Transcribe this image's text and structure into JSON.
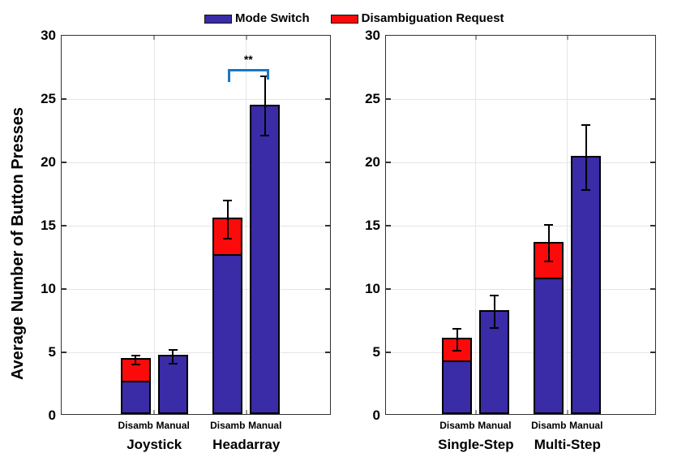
{
  "figure": {
    "background": "#FFFFFF"
  },
  "legend": {
    "items": [
      {
        "label": "Mode Switch",
        "color": "#3A2BA6"
      },
      {
        "label": "Disambiguation Request",
        "color": "#FA0A0A"
      }
    ]
  },
  "colors": {
    "mode_switch": "#3A2BA6",
    "disambiguation_request": "#FA0A0A",
    "bar_edge": "#000000",
    "axis": "#333333",
    "grid": "#E5E5E5",
    "error": "#000000",
    "significance": "#1777C5"
  },
  "chart_data": [
    {
      "type": "bar",
      "stacked": true,
      "title": "",
      "xlabel": "",
      "ylabel": "Average Number of Button Presses",
      "ylim": [
        0,
        30
      ],
      "yticks": [
        0,
        5,
        10,
        15,
        20,
        25,
        30
      ],
      "grid": true,
      "legend_position": "top-center",
      "series_names": [
        "Mode Switch",
        "Disambiguation Request"
      ],
      "groups": [
        {
          "label": "Joystick",
          "bars": [
            {
              "label": "Disamb",
              "mode_switch": 2.65,
              "disambiguation_request": 1.75,
              "total": 4.4,
              "error_low": 4.05,
              "error_high": 4.75
            },
            {
              "label": "Manual",
              "mode_switch": 4.65,
              "disambiguation_request": 0,
              "total": 4.65,
              "error_low": 4.1,
              "error_high": 5.2
            }
          ]
        },
        {
          "label": "Headarray",
          "bars": [
            {
              "label": "Disamb",
              "mode_switch": 12.6,
              "disambiguation_request": 2.9,
              "total": 15.5,
              "error_low": 14.0,
              "error_high": 17.0
            },
            {
              "label": "Manual",
              "mode_switch": 24.4,
              "disambiguation_request": 0,
              "total": 24.4,
              "error_low": 22.1,
              "error_high": 26.8
            }
          ]
        }
      ],
      "significance": {
        "label": "**",
        "group": "Headarray",
        "from_bar": "Disamb",
        "to_bar": "Manual",
        "bracket_y": 27.4,
        "color": "#1777C5"
      }
    },
    {
      "type": "bar",
      "stacked": true,
      "title": "",
      "xlabel": "",
      "ylabel": "",
      "ylim": [
        0,
        30
      ],
      "yticks": [
        0,
        5,
        10,
        15,
        20,
        25,
        30
      ],
      "grid": true,
      "series_names": [
        "Mode Switch",
        "Disambiguation Request"
      ],
      "groups": [
        {
          "label": "Single-Step",
          "bars": [
            {
              "label": "Disamb",
              "mode_switch": 4.25,
              "disambiguation_request": 1.75,
              "total": 6.0,
              "error_low": 5.15,
              "error_high": 6.85
            },
            {
              "label": "Manual",
              "mode_switch": 8.2,
              "disambiguation_request": 0,
              "total": 8.2,
              "error_low": 6.9,
              "error_high": 9.5
            }
          ]
        },
        {
          "label": "Multi-Step",
          "bars": [
            {
              "label": "Disamb",
              "mode_switch": 10.8,
              "disambiguation_request": 2.8,
              "total": 13.6,
              "error_low": 12.15,
              "error_high": 15.05
            },
            {
              "label": "Manual",
              "mode_switch": 20.4,
              "disambiguation_request": 0,
              "total": 20.4,
              "error_low": 17.85,
              "error_high": 22.95
            }
          ]
        }
      ],
      "significance": null
    }
  ]
}
